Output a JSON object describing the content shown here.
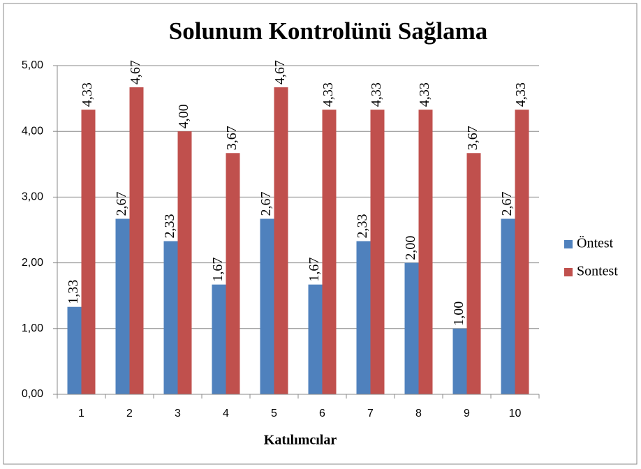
{
  "chart_data": {
    "type": "bar",
    "title": "Solunum Kontrolünü Sağlama",
    "x_label": "Katılımcılar",
    "categories": [
      "1",
      "2",
      "3",
      "4",
      "5",
      "6",
      "7",
      "8",
      "9",
      "10"
    ],
    "series": [
      {
        "name": "Öntest",
        "color": "#4f81bd",
        "values": [
          1.33,
          2.67,
          2.33,
          1.67,
          2.67,
          1.67,
          2.33,
          2.0,
          1.0,
          2.67
        ],
        "value_labels": [
          "1,33",
          "2,67",
          "2,33",
          "1,67",
          "2,67",
          "1,67",
          "2,33",
          "2,00",
          "1,00",
          "2,67"
        ]
      },
      {
        "name": "Sontest",
        "color": "#c0504d",
        "values": [
          4.33,
          4.67,
          4.0,
          3.67,
          4.67,
          4.33,
          4.33,
          4.33,
          3.67,
          4.33
        ],
        "value_labels": [
          "4,33",
          "4,67",
          "4,00",
          "3,67",
          "4,67",
          "4,33",
          "4,33",
          "4,33",
          "3,67",
          "4,33"
        ]
      }
    ],
    "ylim": [
      0,
      5
    ],
    "yticks": [
      {
        "value": 0,
        "label": "0,00"
      },
      {
        "value": 1,
        "label": "1,00"
      },
      {
        "value": 2,
        "label": "2,00"
      },
      {
        "value": 3,
        "label": "3,00"
      },
      {
        "value": 4,
        "label": "4,00"
      },
      {
        "value": 5,
        "label": "5,00"
      }
    ],
    "grid": true,
    "legend": "right"
  }
}
